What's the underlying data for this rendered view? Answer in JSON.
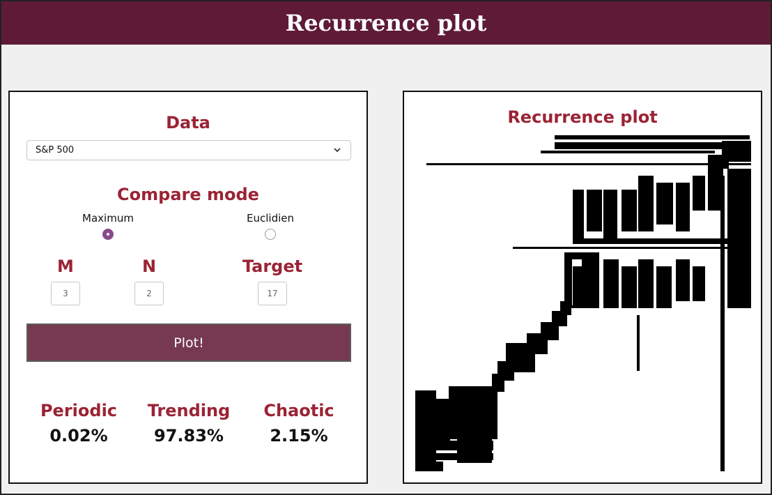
{
  "header": {
    "title": "Recurrence plot"
  },
  "controls": {
    "data_title": "Data",
    "data_selected": "S&P 500",
    "compare_title": "Compare mode",
    "compare_options": [
      {
        "label": "Maximum",
        "selected": true
      },
      {
        "label": "Euclidien",
        "selected": false
      }
    ],
    "params": [
      {
        "label": "M",
        "value": "3"
      },
      {
        "label": "N",
        "value": "2"
      },
      {
        "label": "Target",
        "value": "17"
      }
    ],
    "plot_label": "Plot!"
  },
  "stats": [
    {
      "label": "Periodic",
      "value": "0.02%"
    },
    {
      "label": "Trending",
      "value": "97.83%"
    },
    {
      "label": "Chaotic",
      "value": "2.15%"
    }
  ],
  "plot": {
    "title": "Recurrence plot"
  },
  "colors": {
    "header_bg": "#5e1a37",
    "accent": "#9b2335",
    "button_bg": "#773950"
  }
}
